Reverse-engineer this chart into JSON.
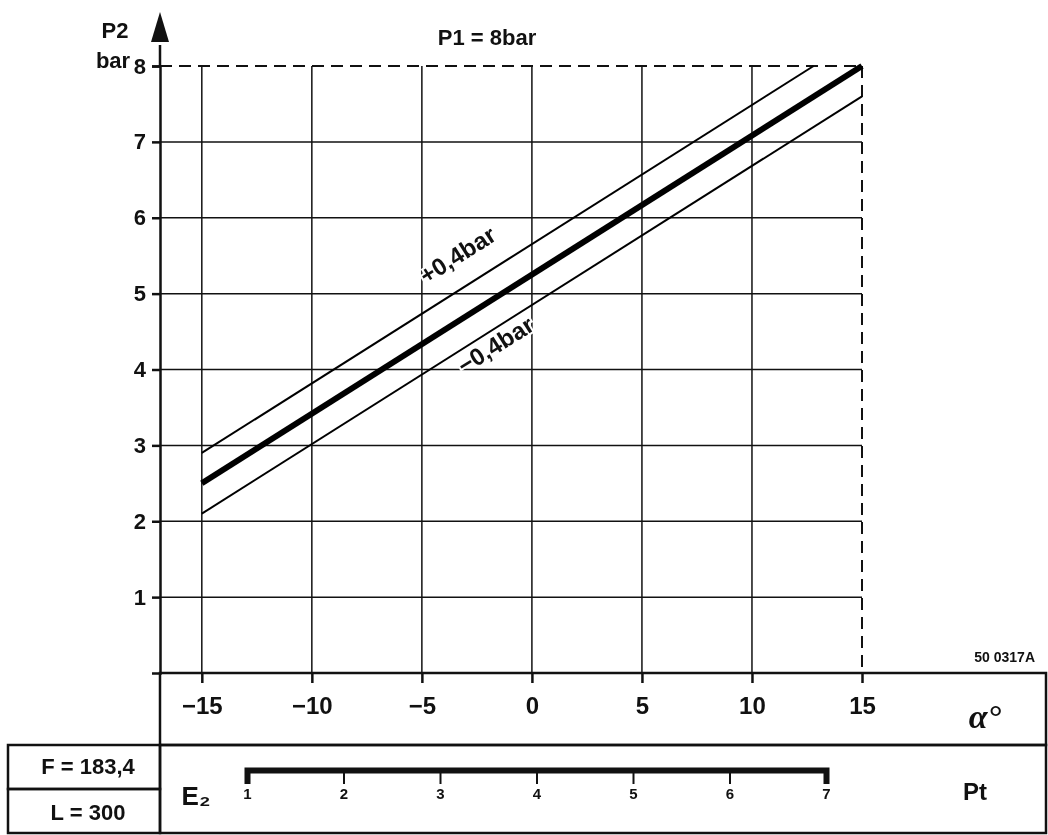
{
  "chart_data": {
    "type": "line",
    "title": "P1 = 8bar",
    "xlabel": "α°",
    "ylabel": "P2 bar",
    "xlim": [
      -16.9,
      15
    ],
    "xticks": [
      -15,
      -10,
      -5,
      0,
      5,
      10,
      15
    ],
    "ylim": [
      0,
      8
    ],
    "yticks": [
      1,
      2,
      3,
      4,
      5,
      6,
      7,
      8
    ],
    "x2lim": [
      1,
      7
    ],
    "x2ticks": [
      1,
      2,
      3,
      4,
      5,
      6,
      7
    ],
    "x2label": "Pt",
    "grid": true,
    "marker": "none",
    "line_style": "solid",
    "series": [
      {
        "color": "#000000",
        "x": [
          -15,
          12.8
        ],
        "values": [
          2.9,
          8
        ]
      },
      {
        "color": "#000000",
        "x": [
          -15,
          15
        ],
        "values": [
          2.5,
          8
        ]
      },
      {
        "color": "#000000",
        "x": [
          -15,
          15
        ],
        "values": [
          2.1,
          7.6
        ]
      }
    ],
    "annotations": [
      "+0,4bar",
      "−0,4bar",
      "50 0317A",
      "F = 183,4",
      "L = 300",
      "E₂"
    ]
  }
}
